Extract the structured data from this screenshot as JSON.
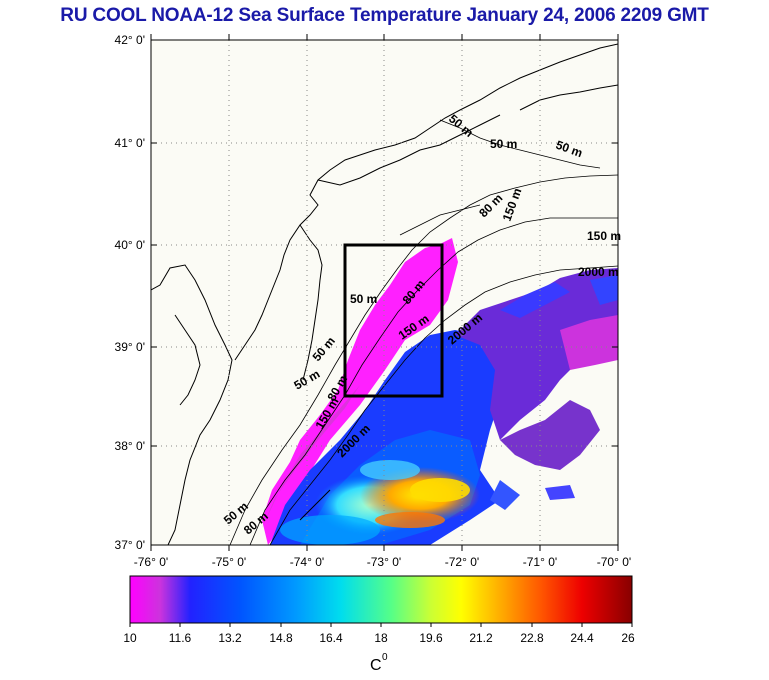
{
  "title": "RU COOL  NOAA-12 Sea Surface Temperature January 24, 2006 2209 GMT",
  "map": {
    "lat_labels": [
      "42° 0'",
      "41° 0'",
      "40° 0'",
      "39° 0'",
      "38° 0'",
      "37° 0'"
    ],
    "lon_labels": [
      "-76° 0'",
      "-75° 0'",
      "-74° 0'",
      "-73° 0'",
      "-72° 0'",
      "-71° 0'",
      "-70° 0'"
    ],
    "contour_labels": [
      "50 m",
      "50 m",
      "50 m",
      "80 m",
      "150 m",
      "150 m",
      "2000 m",
      "50 m",
      "80 m",
      "150 m",
      "2000 m",
      "50 m",
      "50 m",
      "80 m",
      "150 m",
      "2000 m",
      "50 m",
      "80 m"
    ]
  },
  "colorbar": {
    "ticks": [
      "10",
      "11.6",
      "13.2",
      "14.8",
      "16.4",
      "18",
      "19.6",
      "21.2",
      "22.8",
      "24.4",
      "26"
    ],
    "unit": "C",
    "unit_sup": "0"
  },
  "colors": {
    "title": "#1a1aa8",
    "land": "#fbfbf5",
    "grid": "#888888"
  }
}
